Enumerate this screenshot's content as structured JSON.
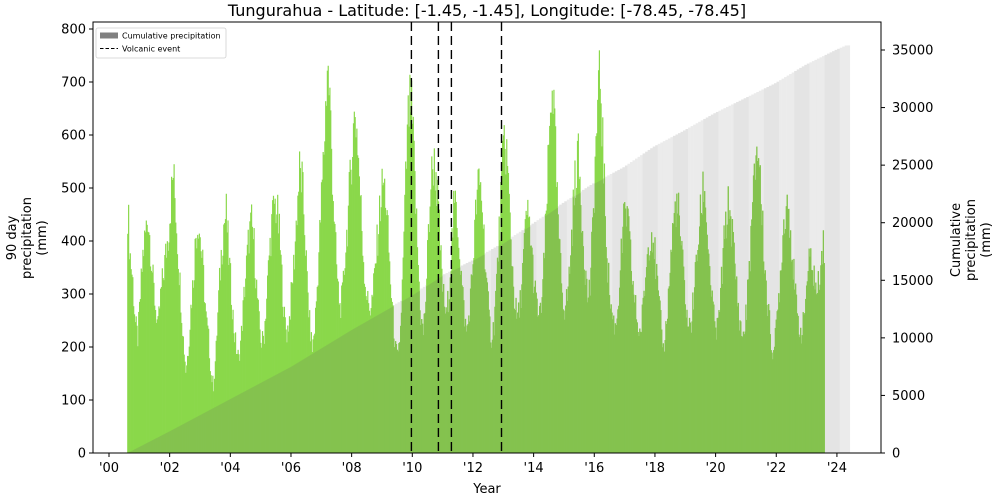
{
  "title": "Tungurahua - Latitude: [-1.45, -1.45], Longitude: [-78.45, -78.45]",
  "xlabel": "Year",
  "ylabel_left": [
    "90 day",
    "precipitation",
    "(mm)"
  ],
  "ylabel_right": [
    "Cumulative",
    "precipitation",
    "(mm)"
  ],
  "legend": {
    "items": [
      {
        "label": "Cumulative precipitation",
        "kind": "patch",
        "color": "#808080"
      },
      {
        "label": "Volcanic event",
        "kind": "dashed-line",
        "color": "#000000"
      }
    ]
  },
  "colors": {
    "precip_bar": "#7ed957",
    "precip_bar_light": "#8ad84a",
    "precip_bar_over_cumulative": "#84c24f",
    "cumulative_fill": "#e4e4e4",
    "cumulative_fill_alt": "#ebebeb",
    "event_line": "#000000",
    "axis": "#000000"
  },
  "chart_data": {
    "type": "bar",
    "title": "Tungurahua - Latitude: [-1.45, -1.45], Longitude: [-78.45, -78.45]",
    "xlabel": "Year",
    "ylabel": "90 day precipitation (mm)",
    "ylabel_right": "Cumulative precipitation (mm)",
    "xlim": [
      1999.5,
      2025.5
    ],
    "ylim": [
      0,
      800
    ],
    "ylim_right": [
      0,
      37000
    ],
    "xticks": [
      2000,
      2002,
      2004,
      2006,
      2008,
      2010,
      2012,
      2014,
      2016,
      2018,
      2020,
      2022,
      2024
    ],
    "xtick_labels": [
      "'00",
      "'02",
      "'04",
      "'06",
      "'08",
      "'10",
      "'12",
      "'14",
      "'16",
      "'18",
      "'20",
      "'22",
      "'24"
    ],
    "yticks_left": [
      0,
      100,
      200,
      300,
      400,
      500,
      600,
      700,
      800
    ],
    "yticks_right": [
      0,
      5000,
      10000,
      15000,
      20000,
      25000,
      30000,
      35000
    ],
    "grid": false,
    "legend_position": "upper left",
    "series": [
      {
        "name": "90 day precipitation",
        "type": "bar",
        "axis": "left",
        "x_start": 2000.6,
        "x_step": 0.0833,
        "values": [
          470,
          380,
          330,
          250,
          220,
          300,
          380,
          420,
          460,
          400,
          330,
          280,
          240,
          300,
          340,
          380,
          420,
          480,
          540,
          470,
          380,
          300,
          220,
          160,
          200,
          280,
          340,
          420,
          450,
          400,
          340,
          260,
          220,
          150,
          130,
          200,
          300,
          380,
          440,
          460,
          380,
          310,
          240,
          200,
          180,
          230,
          300,
          360,
          420,
          440,
          400,
          320,
          250,
          210,
          230,
          300,
          380,
          440,
          480,
          470,
          420,
          340,
          260,
          230,
          260,
          320,
          380,
          470,
          540,
          520,
          440,
          330,
          250,
          200,
          240,
          320,
          420,
          520,
          620,
          750,
          680,
          540,
          420,
          330,
          280,
          300,
          380,
          440,
          520,
          600,
          660,
          600,
          500,
          400,
          330,
          290,
          280,
          300,
          360,
          420,
          480,
          520,
          500,
          420,
          330,
          260,
          200,
          180,
          240,
          360,
          520,
          640,
          680,
          600,
          480,
          360,
          260,
          230,
          300,
          420,
          520,
          560,
          540,
          460,
          370,
          300,
          260,
          300,
          380,
          460,
          480,
          420,
          340,
          280,
          230,
          260,
          320,
          400,
          480,
          520,
          500,
          420,
          330,
          260,
          220,
          250,
          330,
          420,
          520,
          600,
          580,
          480,
          380,
          300,
          260,
          270,
          330,
          400,
          460,
          440,
          380,
          320,
          280,
          260,
          300,
          380,
          500,
          620,
          730,
          620,
          480,
          380,
          310,
          280,
          300,
          360,
          440,
          520,
          580,
          520,
          440,
          360,
          300,
          320,
          420,
          560,
          660,
          730,
          600,
          460,
          360,
          290,
          260,
          240,
          280,
          360,
          420,
          470,
          440,
          380,
          320,
          280,
          240,
          230,
          280,
          340,
          400,
          430,
          420,
          360,
          300,
          250,
          200,
          240,
          300,
          380,
          440,
          480,
          460,
          400,
          340,
          280,
          240,
          250,
          300,
          360,
          420,
          470,
          520,
          460,
          380,
          310,
          260,
          230,
          260,
          330,
          400,
          450,
          480,
          440,
          380,
          320,
          260,
          230,
          230,
          280,
          360,
          440,
          520,
          600,
          560,
          460,
          370,
          300,
          250,
          200,
          200,
          260,
          320,
          400,
          460,
          490,
          460,
          380,
          320,
          260,
          240,
          230,
          280,
          340,
          370,
          360,
          330,
          300,
          360,
          400
        ]
      },
      {
        "name": "Cumulative precipitation",
        "type": "area",
        "axis": "right",
        "points": [
          [
            2000.6,
            0
          ],
          [
            2002.0,
            1900
          ],
          [
            2004.0,
            4700
          ],
          [
            2006.0,
            7500
          ],
          [
            2008.0,
            10700
          ],
          [
            2010.0,
            13700
          ],
          [
            2011.0,
            15400
          ],
          [
            2012.0,
            16700
          ],
          [
            2013.0,
            18200
          ],
          [
            2014.0,
            19900
          ],
          [
            2015.0,
            21700
          ],
          [
            2016.0,
            23400
          ],
          [
            2017.0,
            24800
          ],
          [
            2018.0,
            26600
          ],
          [
            2019.0,
            28000
          ],
          [
            2020.0,
            29500
          ],
          [
            2021.0,
            30800
          ],
          [
            2022.0,
            32100
          ],
          [
            2023.0,
            33700
          ],
          [
            2024.0,
            35000
          ],
          [
            2024.35,
            35400
          ]
        ]
      },
      {
        "name": "Volcanic event",
        "type": "vline",
        "x": [
          2009.97,
          2010.86,
          2011.29,
          2012.94
        ]
      }
    ]
  }
}
